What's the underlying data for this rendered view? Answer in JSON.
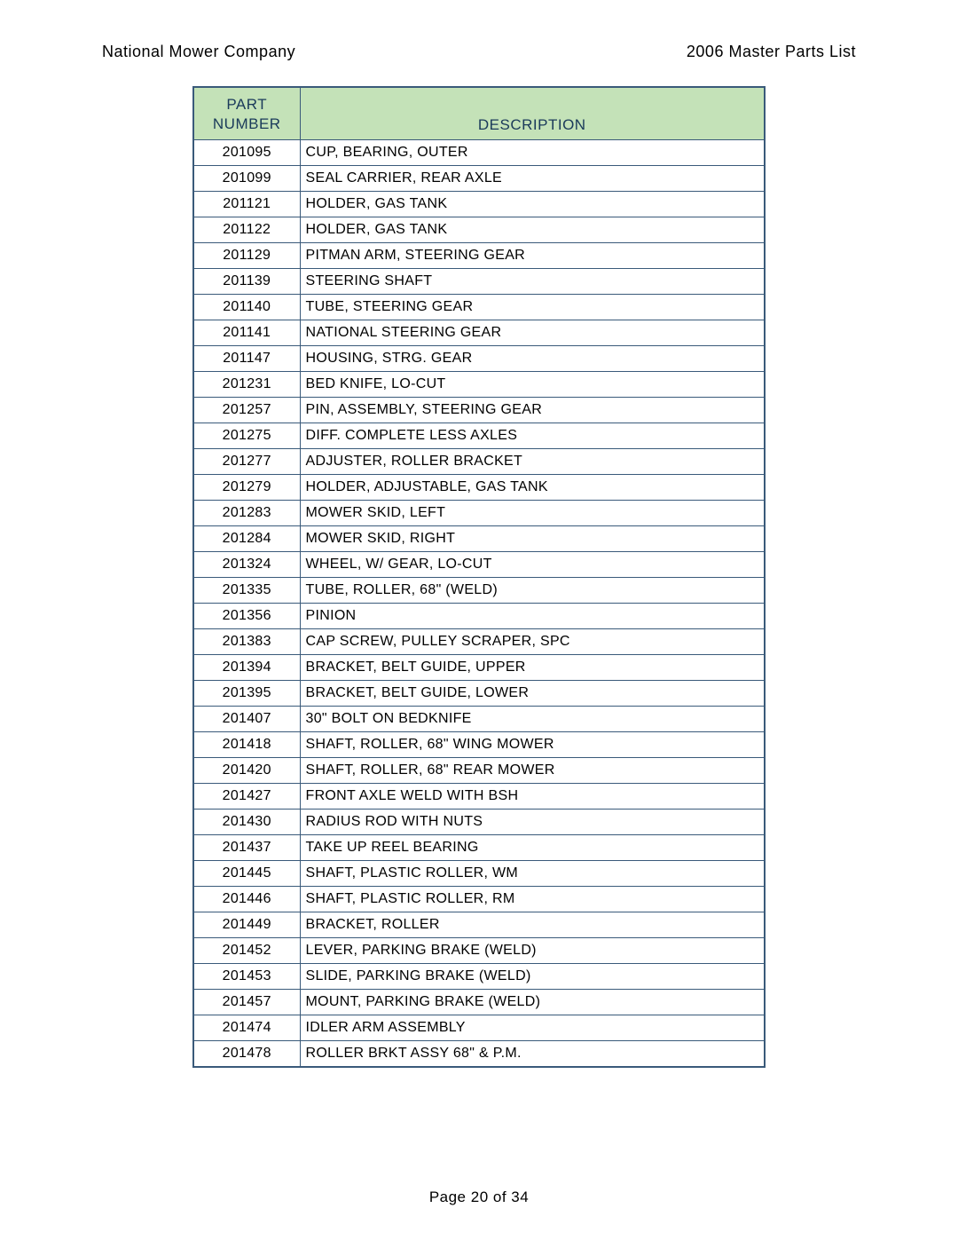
{
  "header": {
    "company": "National Mower Company",
    "doc_title": "2006 Master Parts List"
  },
  "table": {
    "header_part_line1": "PART",
    "header_part_line2": "NUMBER",
    "header_desc": "DESCRIPTION",
    "header_bg": "#c4e2b8",
    "header_fg": "#1a3a5a",
    "border_color": "#3a5a7a",
    "col_widths": {
      "part_number": 120,
      "description": 526
    },
    "rows": [
      {
        "pn": "201095",
        "desc": "CUP, BEARING, OUTER"
      },
      {
        "pn": "201099",
        "desc": "SEAL CARRIER, REAR AXLE"
      },
      {
        "pn": "201121",
        "desc": "HOLDER, GAS TANK"
      },
      {
        "pn": "201122",
        "desc": "HOLDER, GAS TANK"
      },
      {
        "pn": "201129",
        "desc": "PITMAN ARM, STEERING GEAR"
      },
      {
        "pn": "201139",
        "desc": "STEERING SHAFT"
      },
      {
        "pn": "201140",
        "desc": "TUBE, STEERING GEAR"
      },
      {
        "pn": "201141",
        "desc": "NATIONAL STEERING GEAR"
      },
      {
        "pn": "201147",
        "desc": "HOUSING, STRG. GEAR"
      },
      {
        "pn": "201231",
        "desc": "BED KNIFE, LO-CUT"
      },
      {
        "pn": "201257",
        "desc": "PIN, ASSEMBLY, STEERING GEAR"
      },
      {
        "pn": "201275",
        "desc": "DIFF.  COMPLETE LESS AXLES"
      },
      {
        "pn": "201277",
        "desc": "ADJUSTER, ROLLER BRACKET"
      },
      {
        "pn": "201279",
        "desc": "HOLDER, ADJUSTABLE, GAS TANK"
      },
      {
        "pn": "201283",
        "desc": "MOWER SKID, LEFT"
      },
      {
        "pn": "201284",
        "desc": "MOWER SKID, RIGHT"
      },
      {
        "pn": "201324",
        "desc": "WHEEL, W/ GEAR, LO-CUT"
      },
      {
        "pn": "201335",
        "desc": "TUBE, ROLLER, 68\" (WELD)"
      },
      {
        "pn": "201356",
        "desc": "PINION"
      },
      {
        "pn": "201383",
        "desc": "CAP SCREW, PULLEY SCRAPER, SPC"
      },
      {
        "pn": "201394",
        "desc": "BRACKET, BELT GUIDE, UPPER"
      },
      {
        "pn": "201395",
        "desc": "BRACKET, BELT GUIDE, LOWER"
      },
      {
        "pn": "201407",
        "desc": "30\" BOLT ON BEDKNIFE"
      },
      {
        "pn": "201418",
        "desc": "SHAFT, ROLLER, 68\" WING MOWER"
      },
      {
        "pn": "201420",
        "desc": "SHAFT, ROLLER, 68\" REAR MOWER"
      },
      {
        "pn": "201427",
        "desc": "FRONT AXLE WELD WITH BSH"
      },
      {
        "pn": "201430",
        "desc": "RADIUS ROD WITH NUTS"
      },
      {
        "pn": "201437",
        "desc": "TAKE UP REEL BEARING"
      },
      {
        "pn": "201445",
        "desc": "SHAFT, PLASTIC ROLLER, WM"
      },
      {
        "pn": "201446",
        "desc": "SHAFT, PLASTIC ROLLER, RM"
      },
      {
        "pn": "201449",
        "desc": "BRACKET, ROLLER"
      },
      {
        "pn": "201452",
        "desc": "LEVER, PARKING BRAKE (WELD)"
      },
      {
        "pn": "201453",
        "desc": "SLIDE, PARKING BRAKE (WELD)"
      },
      {
        "pn": "201457",
        "desc": "MOUNT, PARKING BRAKE (WELD)"
      },
      {
        "pn": "201474",
        "desc": "IDLER ARM ASSEMBLY"
      },
      {
        "pn": "201478",
        "desc": "ROLLER BRKT ASSY 68\" & P.M."
      }
    ]
  },
  "footer": {
    "text": "Page 20 of 34"
  }
}
